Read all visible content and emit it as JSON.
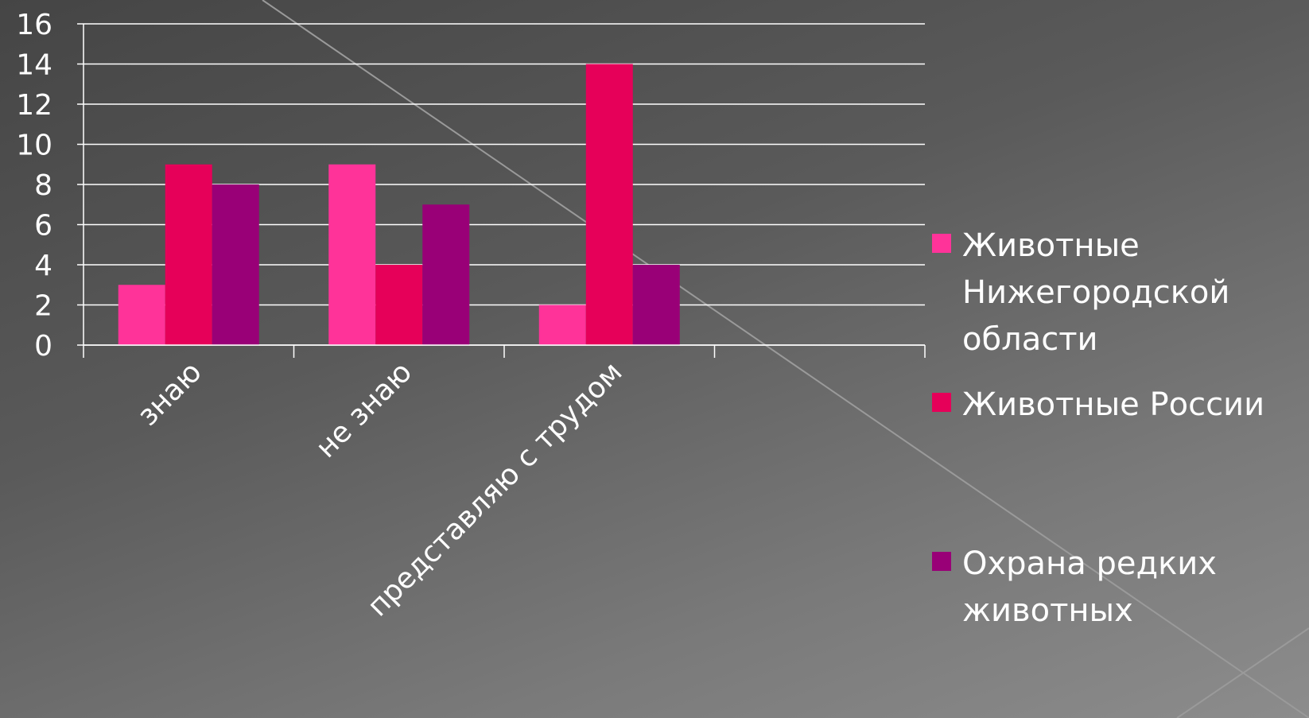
{
  "chart_data": {
    "type": "bar",
    "categories": [
      "знаю",
      "не знаю",
      "представляю с трудом",
      ""
    ],
    "series": [
      {
        "name": "Животные Нижегородской области",
        "values": [
          3,
          9,
          2,
          null
        ],
        "color": "#ff3399"
      },
      {
        "name": "Животные России",
        "values": [
          9,
          4,
          14,
          null
        ],
        "color": "#e60059"
      },
      {
        "name": "Охрана редких животных",
        "values": [
          8,
          7,
          4,
          null
        ],
        "color": "#990077"
      }
    ],
    "yticks": [
      "0",
      "2",
      "4",
      "6",
      "8",
      "10",
      "12",
      "14",
      "16"
    ],
    "ylim": [
      0,
      16
    ],
    "grid": true,
    "legend_position": "right"
  },
  "legend": {
    "items": [
      {
        "lines": [
          "Животные",
          "Нижегородской",
          "области"
        ],
        "color": "#ff3399"
      },
      {
        "lines": [
          "Животные России"
        ],
        "color": "#e60059"
      },
      {
        "lines": [
          "Охрана редких",
          "животных"
        ],
        "color": "#990077"
      }
    ]
  }
}
